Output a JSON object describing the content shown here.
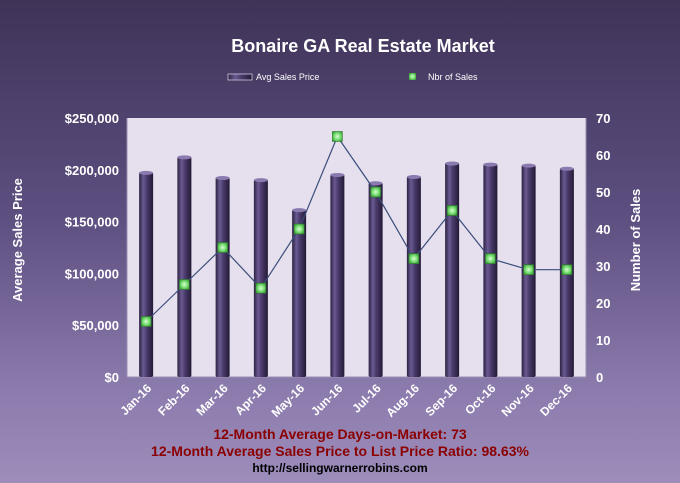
{
  "chart_data": {
    "type": "bar",
    "title": "Bonaire GA Real Estate Market",
    "categories": [
      "Jan-16",
      "Feb-16",
      "Mar-16",
      "Apr-16",
      "May-16",
      "Jun-16",
      "Jul-16",
      "Aug-16",
      "Sep-16",
      "Oct-16",
      "Nov-16",
      "Dec-16"
    ],
    "series": [
      {
        "name": "Avg Sales Price",
        "type": "bar",
        "axis": "left",
        "values": [
          198000,
          213000,
          193000,
          191000,
          162000,
          196000,
          188000,
          194000,
          207000,
          206000,
          205000,
          202000
        ]
      },
      {
        "name": "Nbr of Sales",
        "type": "line",
        "axis": "right",
        "values": [
          15,
          25,
          35,
          24,
          40,
          65,
          50,
          32,
          45,
          32,
          29,
          29
        ]
      }
    ],
    "ylabel": "Average Sales Price",
    "y2label": "Number of Sales",
    "ylim": [
      0,
      250000
    ],
    "y2lim": [
      0,
      70
    ],
    "yticks": [
      "$0",
      "$50,000",
      "$100,000",
      "$150,000",
      "$200,000",
      "$250,000"
    ],
    "y2ticks": [
      "0",
      "10",
      "20",
      "30",
      "40",
      "50",
      "60",
      "70"
    ],
    "legend_position": "top-center",
    "grid": false
  },
  "footnotes": {
    "days_on_market": "12-Month Average Days-on-Market: 73",
    "price_ratio": "12-Month Average Sales Price to List Price Ratio: 98.63%",
    "url": "http://sellingwarnerrobins.com"
  },
  "colors": {
    "plot_bg": "#e6e0ee",
    "bar": "#4a3a6b",
    "line": "#3a4d7a",
    "marker": "#7ee07a",
    "footnote": "#8b0000"
  }
}
